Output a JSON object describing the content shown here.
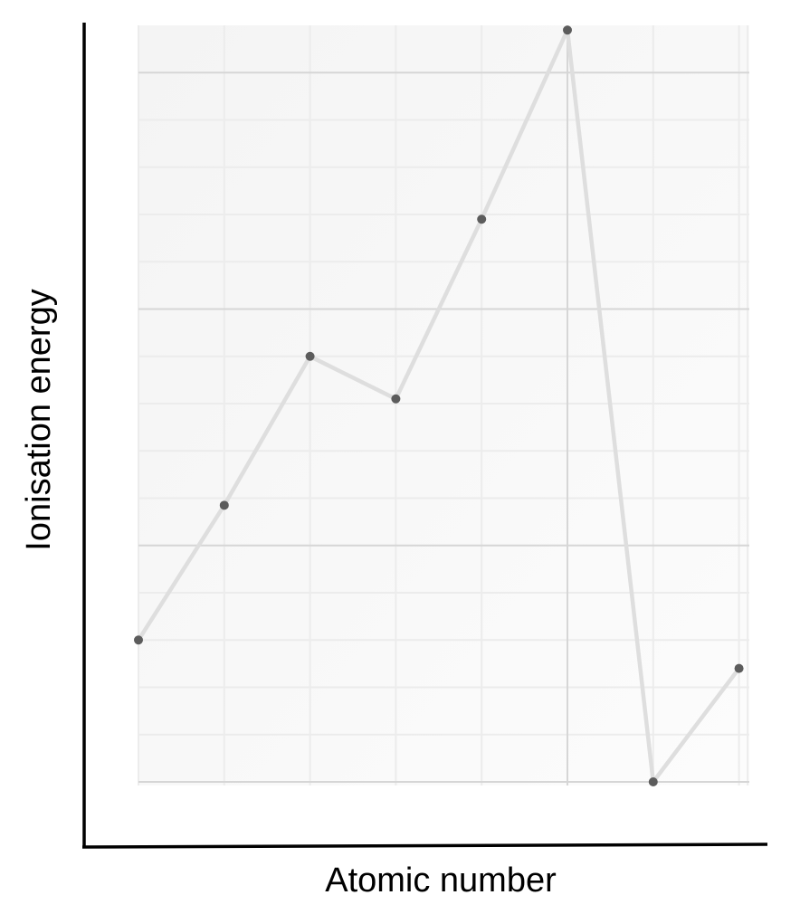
{
  "chart_data": {
    "type": "line",
    "title": "",
    "xlabel": "Atomic number",
    "ylabel": "Ionisation energy",
    "x": [
      1,
      2,
      3,
      4,
      5,
      6,
      7,
      8
    ],
    "xlim": [
      1,
      8.1
    ],
    "ylim": [
      0,
      3.2
    ],
    "series": [
      {
        "values": [
          0.6,
          1.17,
          1.8,
          1.62,
          2.38,
          3.18,
          0.0,
          0.48
        ]
      }
    ],
    "grid": true,
    "tick_labels_shown": false,
    "colors": {
      "line": "#dedede",
      "marker": "#5c5c5c",
      "grid_major": "#d6d6d6",
      "grid_minor": "#ececec",
      "plot_background": "#f7f7f7",
      "axes": "#000000"
    }
  }
}
